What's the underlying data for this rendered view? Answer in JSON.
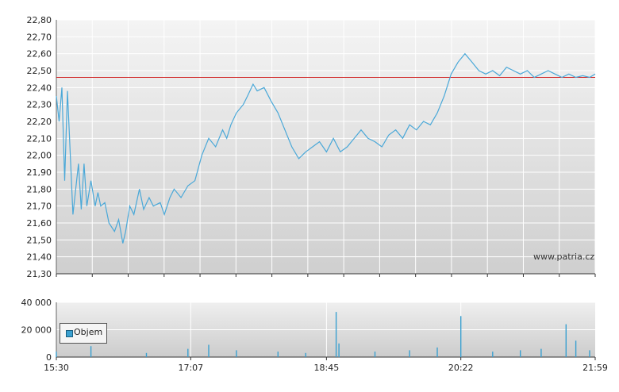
{
  "chart_data": [
    {
      "type": "line",
      "title": "",
      "xlabel": "",
      "ylabel": "",
      "ylim": [
        21.3,
        22.8
      ],
      "y_ticks": [
        "22,80",
        "22,70",
        "22,60",
        "22,50",
        "22,40",
        "22,30",
        "22,20",
        "22,10",
        "22,00",
        "21,90",
        "21,80",
        "21,70",
        "21,60",
        "21,50",
        "21,40",
        "21,30"
      ],
      "x_range": [
        "15:30",
        "21:59"
      ],
      "reference_line": 22.46,
      "reference_color": "#d02020",
      "line_color": "#4aa8d8",
      "grid": true,
      "watermark": "www.patria.cz",
      "series": [
        {
          "x": [
            "15:30",
            "15:32",
            "15:34",
            "15:36",
            "15:38",
            "15:42",
            "15:46",
            "15:48",
            "15:50",
            "15:52",
            "15:55",
            "15:58",
            "16:00",
            "16:02",
            "16:05",
            "16:08",
            "16:12",
            "16:15",
            "16:18",
            "16:20",
            "16:23",
            "16:26",
            "16:30",
            "16:33",
            "16:37",
            "16:40",
            "16:45",
            "16:48",
            "16:52",
            "16:55",
            "17:00",
            "17:05",
            "17:10",
            "17:15",
            "17:20",
            "17:25",
            "17:30",
            "17:33",
            "17:36",
            "17:40",
            "17:45",
            "17:48",
            "17:52",
            "17:55",
            "18:00",
            "18:05",
            "18:10",
            "18:15",
            "18:20",
            "18:25",
            "18:30",
            "18:35",
            "18:40",
            "18:45",
            "18:50",
            "18:55",
            "19:00",
            "19:03",
            "19:07",
            "19:10",
            "19:15",
            "19:20",
            "19:25",
            "19:30",
            "19:35",
            "19:40",
            "19:45",
            "19:50",
            "19:55",
            "20:00",
            "20:05",
            "20:10",
            "20:15",
            "20:20",
            "20:25",
            "20:30",
            "20:35",
            "20:40",
            "20:45",
            "20:50",
            "20:55",
            "21:00",
            "21:05",
            "21:10",
            "21:15",
            "21:20",
            "21:25",
            "21:30",
            "21:35",
            "21:40",
            "21:45",
            "21:50",
            "21:55",
            "21:59"
          ],
          "values": [
            22.35,
            22.2,
            22.4,
            21.85,
            22.38,
            21.65,
            21.95,
            21.68,
            21.95,
            21.7,
            21.85,
            21.7,
            21.78,
            21.7,
            21.72,
            21.6,
            21.55,
            21.62,
            21.48,
            21.55,
            21.7,
            21.65,
            21.8,
            21.68,
            21.75,
            21.7,
            21.72,
            21.65,
            21.75,
            21.8,
            21.75,
            21.82,
            21.85,
            22.0,
            22.1,
            22.05,
            22.15,
            22.1,
            22.18,
            22.25,
            22.3,
            22.35,
            22.42,
            22.38,
            22.4,
            22.32,
            22.25,
            22.15,
            22.05,
            21.98,
            22.02,
            22.05,
            22.08,
            22.02,
            22.1,
            22.02,
            22.05,
            22.08,
            22.12,
            22.15,
            22.1,
            22.08,
            22.05,
            22.12,
            22.15,
            22.1,
            22.18,
            22.15,
            22.2,
            22.18,
            22.25,
            22.35,
            22.48,
            22.55,
            22.6,
            22.55,
            22.5,
            22.48,
            22.5,
            22.47,
            22.52,
            22.5,
            22.48,
            22.5,
            22.46,
            22.48,
            22.5,
            22.48,
            22.46,
            22.48,
            22.46,
            22.47,
            22.46,
            22.48
          ]
        }
      ]
    },
    {
      "type": "bar",
      "title": "",
      "ylim": [
        0,
        40000
      ],
      "y_ticks": [
        "40 000",
        "20 000",
        "0"
      ],
      "x_ticks": [
        "15:30",
        "17:07",
        "18:45",
        "20:22",
        "21:59"
      ],
      "legend": {
        "label": "Objem",
        "placement": "top-left"
      },
      "bar_color": "#3aa0d0",
      "series": [
        {
          "name": "Objem",
          "x": [
            "15:30",
            "15:55",
            "16:35",
            "17:05",
            "17:20",
            "17:40",
            "18:10",
            "18:30",
            "18:52",
            "18:54",
            "19:20",
            "19:45",
            "20:05",
            "20:22",
            "20:45",
            "21:05",
            "21:20",
            "21:38",
            "21:45",
            "21:55"
          ],
          "values": [
            4000,
            8000,
            3000,
            6000,
            9000,
            5000,
            4000,
            3000,
            33000,
            10000,
            4000,
            5000,
            7000,
            30000,
            4000,
            5000,
            6000,
            24000,
            12000,
            5000
          ]
        }
      ]
    }
  ]
}
